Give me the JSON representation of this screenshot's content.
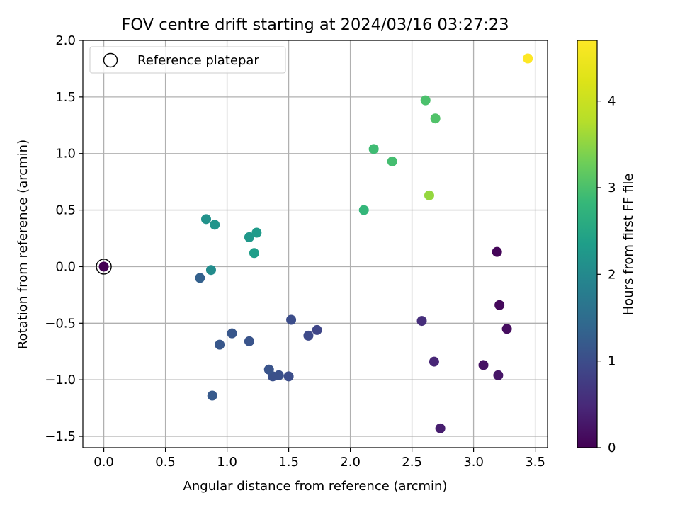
{
  "chart_data": {
    "type": "scatter",
    "title": "FOV centre drift starting at 2024/03/16 03:27:23",
    "xlabel": "Angular distance from reference (arcmin)",
    "ylabel": "Rotation from reference (arcmin)",
    "xlim": [
      -0.17,
      3.6
    ],
    "ylim": [
      -1.6,
      2.0
    ],
    "xticks": [
      0.0,
      0.5,
      1.0,
      1.5,
      2.0,
      2.5,
      3.0,
      3.5
    ],
    "xtick_labels": [
      "0.0",
      "0.5",
      "1.0",
      "1.5",
      "2.0",
      "2.5",
      "3.0",
      "3.5"
    ],
    "yticks": [
      -1.5,
      -1.0,
      -0.5,
      0.0,
      0.5,
      1.0,
      1.5,
      2.0
    ],
    "ytick_labels": [
      "−1.5",
      "−1.0",
      "−0.5",
      "0.0",
      "0.5",
      "1.0",
      "1.5",
      "2.0"
    ],
    "grid": true,
    "legend": {
      "placement": "upper-left",
      "label": "Reference platepar"
    },
    "reference_point": {
      "x": 0.0,
      "y": 0.0
    },
    "colorbar": {
      "label": "Hours from first FF file",
      "colormap": "viridis",
      "range": [
        0,
        4.7
      ],
      "ticks": [
        0,
        1,
        2,
        3,
        4
      ],
      "tick_labels": [
        "0",
        "1",
        "2",
        "3",
        "4"
      ]
    },
    "points": [
      {
        "x": 0.0,
        "y": 0.0,
        "c": 0.0
      },
      {
        "x": 3.19,
        "y": 0.13,
        "c": 0.05
      },
      {
        "x": 3.21,
        "y": -0.34,
        "c": 0.1
      },
      {
        "x": 3.27,
        "y": -0.55,
        "c": 0.15
      },
      {
        "x": 3.08,
        "y": -0.87,
        "c": 0.2
      },
      {
        "x": 3.2,
        "y": -0.96,
        "c": 0.25
      },
      {
        "x": 2.73,
        "y": -1.43,
        "c": 0.35
      },
      {
        "x": 2.68,
        "y": -0.84,
        "c": 0.45
      },
      {
        "x": 2.58,
        "y": -0.48,
        "c": 0.55
      },
      {
        "x": 1.73,
        "y": -0.56,
        "c": 0.9
      },
      {
        "x": 1.66,
        "y": -0.61,
        "c": 0.95
      },
      {
        "x": 1.52,
        "y": -0.47,
        "c": 1.0
      },
      {
        "x": 1.5,
        "y": -0.97,
        "c": 1.0
      },
      {
        "x": 1.42,
        "y": -0.96,
        "c": 1.05
      },
      {
        "x": 1.37,
        "y": -0.97,
        "c": 1.05
      },
      {
        "x": 1.34,
        "y": -0.91,
        "c": 1.1
      },
      {
        "x": 1.18,
        "y": -0.66,
        "c": 1.1
      },
      {
        "x": 1.04,
        "y": -0.59,
        "c": 1.15
      },
      {
        "x": 0.94,
        "y": -0.69,
        "c": 1.15
      },
      {
        "x": 0.88,
        "y": -1.14,
        "c": 1.2
      },
      {
        "x": 0.78,
        "y": -0.1,
        "c": 1.3
      },
      {
        "x": 0.87,
        "y": -0.03,
        "c": 2.05
      },
      {
        "x": 0.83,
        "y": 0.42,
        "c": 2.15
      },
      {
        "x": 0.9,
        "y": 0.37,
        "c": 2.2
      },
      {
        "x": 1.18,
        "y": 0.26,
        "c": 2.25
      },
      {
        "x": 1.24,
        "y": 0.3,
        "c": 2.3
      },
      {
        "x": 1.22,
        "y": 0.12,
        "c": 2.35
      },
      {
        "x": 2.11,
        "y": 0.5,
        "c": 2.8
      },
      {
        "x": 2.19,
        "y": 1.04,
        "c": 2.9
      },
      {
        "x": 2.34,
        "y": 0.93,
        "c": 2.95
      },
      {
        "x": 2.61,
        "y": 1.47,
        "c": 3.0
      },
      {
        "x": 2.69,
        "y": 1.31,
        "c": 3.05
      },
      {
        "x": 2.64,
        "y": 0.63,
        "c": 3.55
      },
      {
        "x": 3.44,
        "y": 1.84,
        "c": 4.7
      }
    ]
  },
  "colors": {
    "grid": "#b0b0b0",
    "axes": "#000000",
    "background": "#ffffff"
  }
}
